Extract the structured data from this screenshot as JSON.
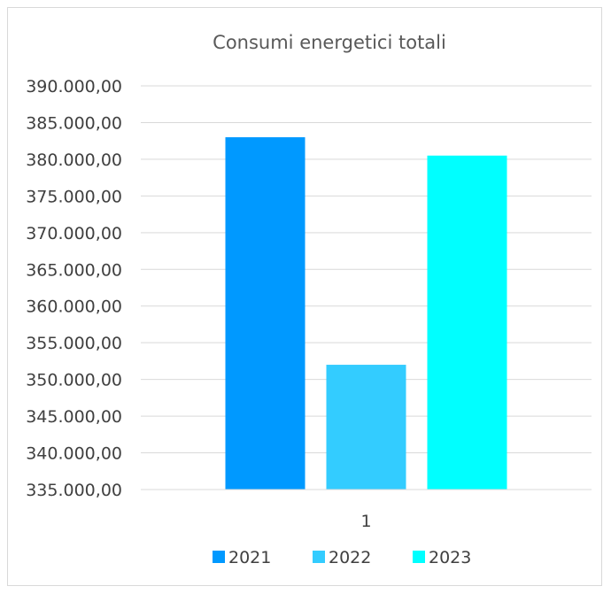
{
  "chart_data": {
    "type": "bar",
    "title": "Consumi energetici totali",
    "categories": [
      "1"
    ],
    "series": [
      {
        "name": "2021",
        "color": "#0099FF",
        "values": [
          383000
        ]
      },
      {
        "name": "2022",
        "color": "#33CCFF",
        "values": [
          352000
        ]
      },
      {
        "name": "2023",
        "color": "#00FFFF",
        "values": [
          380500
        ]
      }
    ],
    "ylim": [
      335000,
      390000
    ],
    "ytick_step": 5000,
    "ytick_labels": [
      "335.000,00",
      "340.000,00",
      "345.000,00",
      "350.000,00",
      "355.000,00",
      "360.000,00",
      "365.000,00",
      "370.000,00",
      "375.000,00",
      "380.000,00",
      "385.000,00",
      "390.000,00"
    ],
    "grid": true,
    "legend_position": "bottom"
  }
}
